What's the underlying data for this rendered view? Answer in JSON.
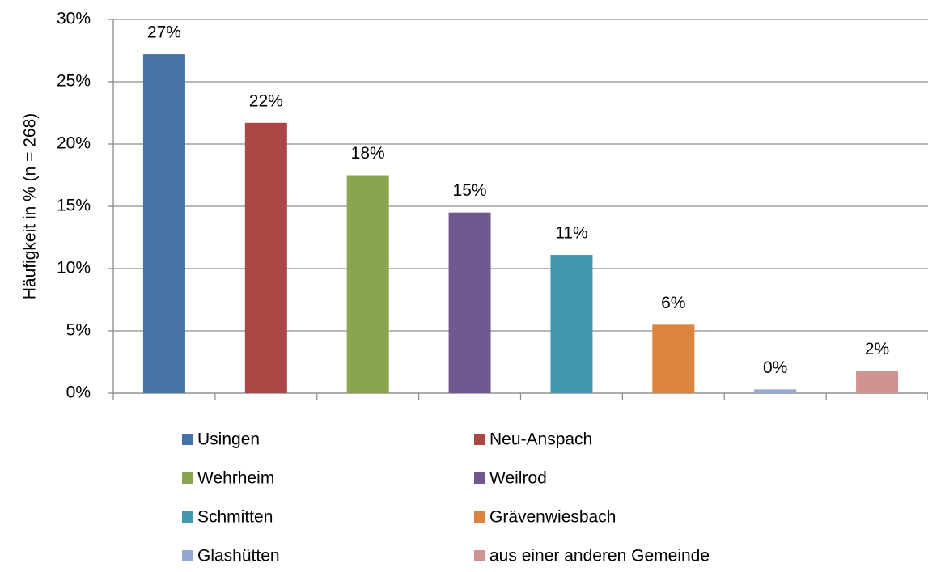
{
  "chart_data": {
    "type": "bar",
    "y_label": "Häufigkeit in % (n = 268)",
    "ylim": [
      0,
      30
    ],
    "yticks": [
      {
        "value": 0,
        "label": "0%"
      },
      {
        "value": 5,
        "label": "5%"
      },
      {
        "value": 10,
        "label": "10%"
      },
      {
        "value": 15,
        "label": "15%"
      },
      {
        "value": 20,
        "label": "20%"
      },
      {
        "value": 25,
        "label": "25%"
      },
      {
        "value": 30,
        "label": "30%"
      }
    ],
    "grid": true,
    "series": [
      {
        "name": "Usingen",
        "color": "#4572a7",
        "values": [
          27.2
        ],
        "value_labels": [
          "27%"
        ]
      },
      {
        "name": "Neu-Anspach",
        "color": "#aa4643",
        "values": [
          21.7
        ],
        "value_labels": [
          "22%"
        ]
      },
      {
        "name": "Wehrheim",
        "color": "#89a54e",
        "values": [
          17.5
        ],
        "value_labels": [
          "18%"
        ]
      },
      {
        "name": "Weilrod",
        "color": "#71588f",
        "values": [
          14.5
        ],
        "value_labels": [
          "15%"
        ]
      },
      {
        "name": "Schmitten",
        "color": "#4198af",
        "values": [
          11.1
        ],
        "value_labels": [
          "11%"
        ]
      },
      {
        "name": "Grävenwiesbach",
        "color": "#db843d",
        "values": [
          5.5
        ],
        "value_labels": [
          "6%"
        ]
      },
      {
        "name": "Glashütten",
        "color": "#93a9cf",
        "values": [
          0.3
        ],
        "value_labels": [
          "0%"
        ]
      },
      {
        "name": "aus einer anderen Gemeinde",
        "color": "#d19392",
        "values": [
          1.8
        ],
        "value_labels": [
          "2%"
        ]
      }
    ]
  }
}
